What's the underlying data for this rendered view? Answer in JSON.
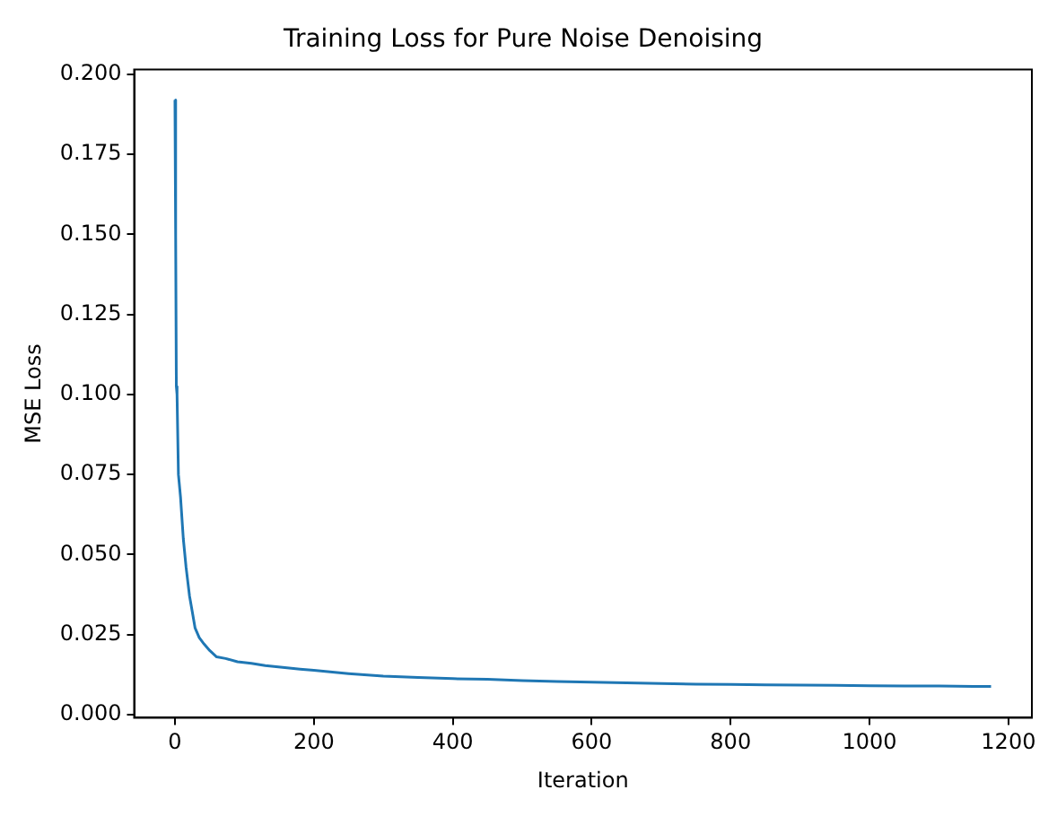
{
  "chart_data": {
    "type": "line",
    "title": "Training Loss for Pure Noise Denoising",
    "xlabel": "Iteration",
    "ylabel": "MSE Loss",
    "x": [
      0,
      1,
      2,
      3,
      5,
      8,
      12,
      16,
      21,
      25,
      29,
      35,
      42,
      50,
      60,
      73,
      90,
      110,
      130,
      152,
      180,
      200,
      250,
      300,
      350,
      400,
      450,
      500,
      550,
      600,
      650,
      700,
      750,
      800,
      850,
      900,
      950,
      1000,
      1050,
      1100,
      1150,
      1175
    ],
    "series": [
      {
        "color": "#1f77b4",
        "values": [
          0.192,
          0.15,
          0.1025,
          0.1,
          0.075,
          0.068,
          0.055,
          0.046,
          0.037,
          0.032,
          0.027,
          0.024,
          0.022,
          0.02,
          0.018,
          0.0175,
          0.0165,
          0.016,
          0.0153,
          0.0148,
          0.0142,
          0.0138,
          0.0128,
          0.012,
          0.0116,
          0.0112,
          0.011,
          0.0106,
          0.0103,
          0.0101,
          0.0099,
          0.0097,
          0.0095,
          0.0094,
          0.0093,
          0.0092,
          0.0091,
          0.009,
          0.0089,
          0.0089,
          0.0088,
          0.0088
        ]
      }
    ],
    "xlim": [
      -58.75,
      1233.75
    ],
    "xticks": [
      0,
      200,
      400,
      600,
      800,
      1000,
      1200
    ],
    "ylim": [
      -0.001,
      0.2015
    ],
    "yticks": [
      {
        "value": 0,
        "label": "0.000"
      },
      {
        "value": 0.025,
        "label": "0.025"
      },
      {
        "value": 0.05,
        "label": "0.050"
      },
      {
        "value": 0.075,
        "label": "0.075"
      },
      {
        "value": 0.1,
        "label": "0.100"
      },
      {
        "value": 0.125,
        "label": "0.125"
      },
      {
        "value": 0.15,
        "label": "0.150"
      },
      {
        "value": 0.175,
        "label": "0.175"
      },
      {
        "value": 0.2,
        "label": "0.200"
      }
    ],
    "grid": false,
    "legend": false,
    "marker": "none",
    "line_style": "solid"
  }
}
